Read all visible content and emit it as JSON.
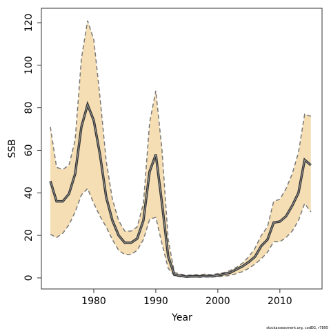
{
  "chart_data": {
    "type": "line_band",
    "xlabel": "Year",
    "ylabel": "SSB",
    "footer": "stockassessment.org, codEG, r7895",
    "x": [
      1973,
      1974,
      1975,
      1976,
      1977,
      1978,
      1979,
      1980,
      1981,
      1982,
      1983,
      1984,
      1985,
      1986,
      1987,
      1988,
      1989,
      1990,
      1991,
      1992,
      1993,
      1994,
      1995,
      1996,
      1997,
      1998,
      1999,
      2000,
      2001,
      2002,
      2003,
      2004,
      2005,
      2006,
      2007,
      2008,
      2009,
      2010,
      2011,
      2012,
      2013,
      2014,
      2015
    ],
    "values": [
      45.5,
      36,
      36,
      39.5,
      49,
      71,
      81.5,
      74,
      58,
      38,
      27,
      20,
      16.5,
      16.5,
      18.5,
      27,
      50,
      58,
      35,
      10,
      1.5,
      1,
      0.6,
      0.8,
      0.7,
      0.9,
      0.8,
      1.2,
      1.8,
      2.5,
      4,
      5.5,
      7.5,
      10,
      15,
      18,
      26,
      26.5,
      29,
      34,
      40,
      55.5,
      53
    ],
    "upper": [
      71,
      52,
      51,
      53,
      65,
      103,
      121,
      112,
      85,
      55,
      37,
      27,
      22,
      22,
      24,
      35,
      73,
      88,
      60,
      18,
      2.5,
      1.8,
      1.2,
      1.5,
      1.5,
      1.8,
      1.5,
      2,
      2.5,
      3.5,
      5,
      7,
      10,
      14,
      20,
      24,
      36,
      37,
      42,
      49,
      59,
      77,
      76
    ],
    "lower": [
      20.5,
      19,
      21,
      25,
      31,
      39,
      42,
      35,
      29,
      24,
      18,
      13,
      11,
      11,
      13,
      18,
      27.5,
      28.5,
      16,
      4.5,
      1,
      0.5,
      0.3,
      0.4,
      0.3,
      0.4,
      0.4,
      0.6,
      0.8,
      1.2,
      2,
      3,
      4.5,
      6.5,
      9,
      12,
      17,
      17,
      19,
      22,
      27,
      35,
      31
    ],
    "line_color": "#333333",
    "band_color": "#f5deb3",
    "band_edge_color": "#777777",
    "xlim": [
      1971.55,
      2016.8
    ],
    "ylim": [
      -5.2,
      126.8
    ],
    "xticks": [
      1980,
      1990,
      2000,
      2010
    ],
    "yticks": [
      0,
      20,
      40,
      60,
      80,
      100,
      120
    ]
  }
}
